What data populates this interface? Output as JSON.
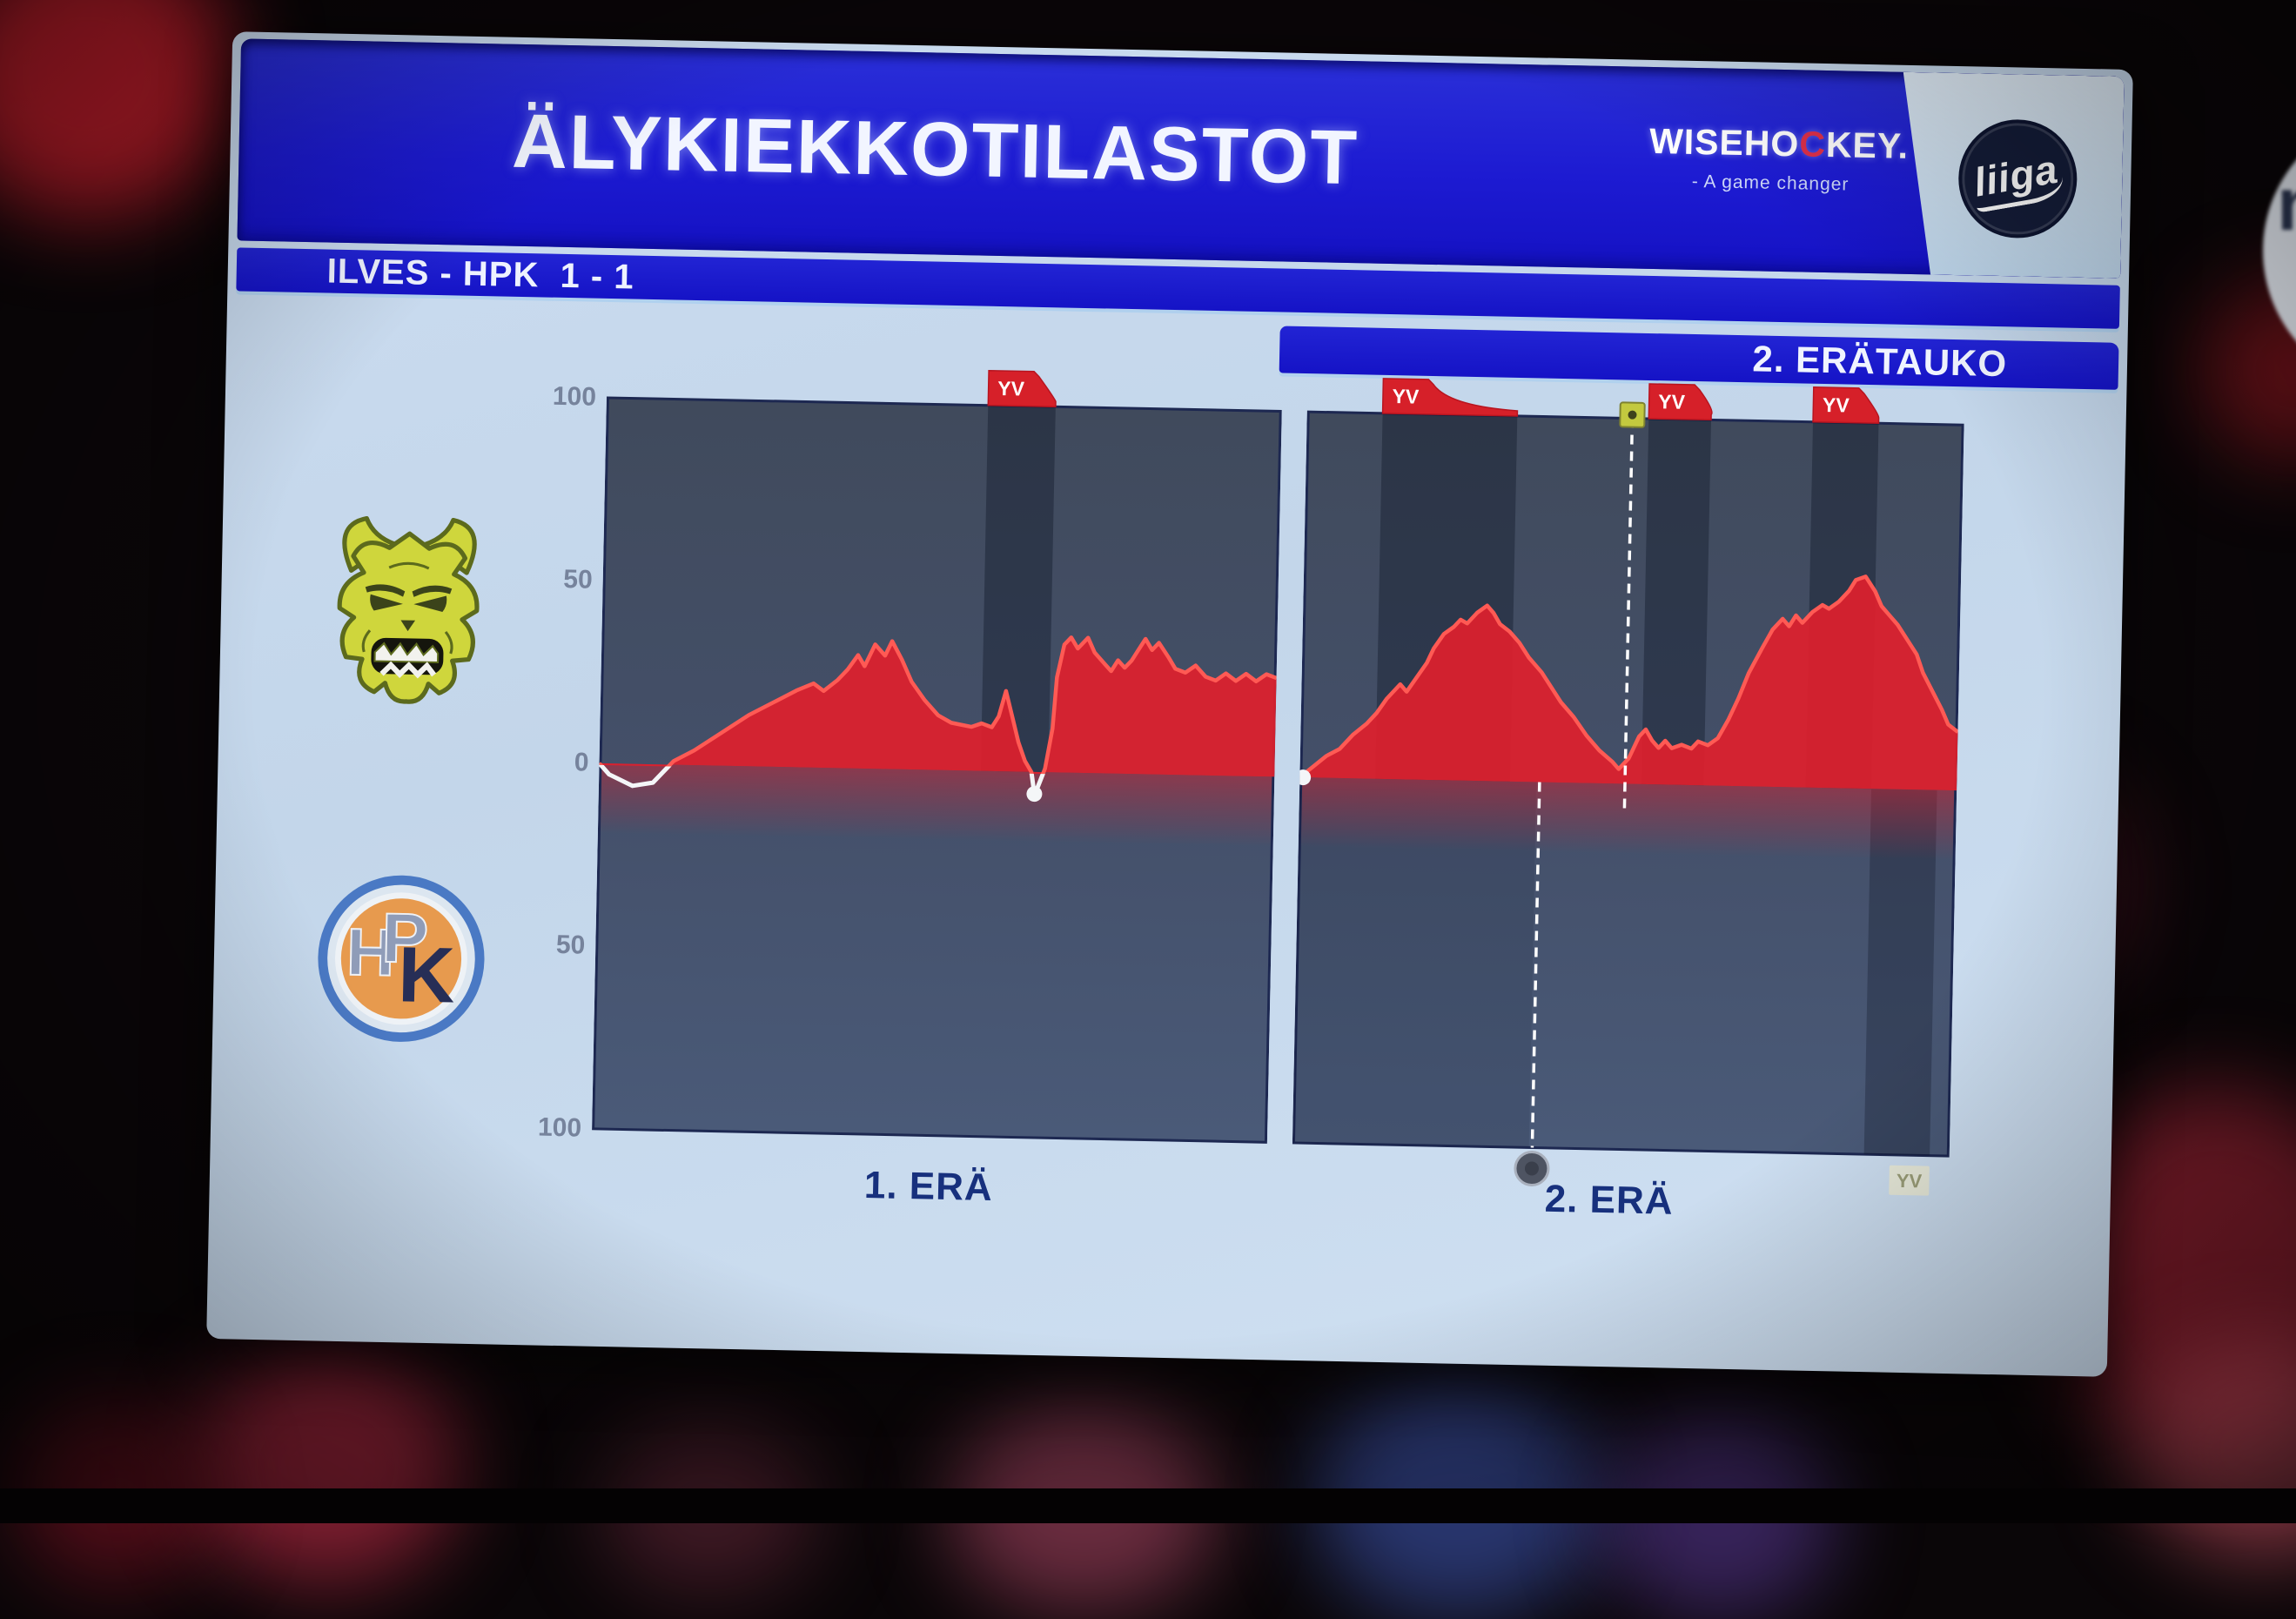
{
  "header": {
    "title": "ÄLYKIEKKOTILASTOT",
    "sponsor": {
      "name": "WISEHOCKEY.",
      "part1": "WISEHO",
      "accent": "C",
      "part2": "KEY.",
      "tagline": "- A game changer"
    },
    "league_text": "liiga"
  },
  "scoreline": {
    "home": "ILVES",
    "away": "HPK",
    "score": "1 - 1",
    "text": "ILVES - HPK  1 - 1"
  },
  "status": {
    "text": "2. ERÄTAUKO"
  },
  "teams": [
    {
      "name": "ILVES",
      "logo": "ilves-lynx"
    },
    {
      "name": "HPK",
      "logo": "hpk-badge"
    }
  ],
  "channel_bug": {
    "letter": "n"
  },
  "colors": {
    "banner_blue": "#1b19cf",
    "panel_bg": "#c9dbee",
    "chart_bg_top": "#404a5c",
    "chart_bg_bottom": "#4a5a78",
    "chart_border": "#1d2851",
    "momentum_fill": "#e01f2d",
    "momentum_line": "#ff5a54",
    "negative_line": "#f4f6f8",
    "powerplay_band": "#0e1426",
    "powerplay_flag": "#d62029",
    "powerplay_flag_text": "#ffffff",
    "hpk_flag": "#e9ead8",
    "hpk_flag_text": "#9a9d78",
    "goal_ilves_marker": "#c3c93f",
    "goal_hpk_marker": "#4e5462",
    "axis_tick_text": "#76839c",
    "period_label_text": "#17307d"
  },
  "chart_data": {
    "type": "area",
    "description": "Game momentum per minute; positive values = ILVES pressure (red area), negative = HPK (white line)",
    "legend_position": "none",
    "grid": false,
    "y_axis_ticks": [
      "100",
      "50",
      "0",
      "50",
      "100"
    ],
    "y_range": [
      -100,
      100
    ],
    "x_minutes_per_period": 20,
    "powerplay_label": "YV",
    "periods": [
      {
        "label": "1. ERÄ",
        "momentum": [
          [
            0,
            0
          ],
          [
            0.3,
            -3
          ],
          [
            1,
            -6
          ],
          [
            1.6,
            -5
          ],
          [
            2,
            -1
          ],
          [
            2.2,
            1
          ],
          [
            2.8,
            4
          ],
          [
            3.6,
            9
          ],
          [
            4.4,
            14
          ],
          [
            5.2,
            18
          ],
          [
            5.8,
            21
          ],
          [
            6.3,
            23
          ],
          [
            6.6,
            21
          ],
          [
            7,
            24
          ],
          [
            7.3,
            27
          ],
          [
            7.6,
            31
          ],
          [
            7.8,
            28
          ],
          [
            8.1,
            34
          ],
          [
            8.4,
            31
          ],
          [
            8.6,
            35
          ],
          [
            8.9,
            30
          ],
          [
            9.2,
            24
          ],
          [
            9.6,
            19
          ],
          [
            10,
            15
          ],
          [
            10.4,
            13
          ],
          [
            11,
            12
          ],
          [
            11.3,
            13
          ],
          [
            11.6,
            12
          ],
          [
            11.8,
            15
          ],
          [
            12,
            22
          ],
          [
            12.2,
            15
          ],
          [
            12.4,
            8
          ],
          [
            12.6,
            3
          ],
          [
            12.8,
            0
          ],
          [
            12.9,
            -6
          ],
          [
            13,
            -4
          ],
          [
            13.2,
            1
          ],
          [
            13.4,
            12
          ],
          [
            13.5,
            26
          ],
          [
            13.7,
            35
          ],
          [
            13.9,
            37
          ],
          [
            14.1,
            34
          ],
          [
            14.4,
            37
          ],
          [
            14.6,
            33
          ],
          [
            14.9,
            30
          ],
          [
            15.1,
            28
          ],
          [
            15.3,
            31
          ],
          [
            15.5,
            29
          ],
          [
            15.7,
            31
          ],
          [
            15.9,
            34
          ],
          [
            16.1,
            37
          ],
          [
            16.3,
            34
          ],
          [
            16.5,
            36
          ],
          [
            16.8,
            32
          ],
          [
            17,
            29
          ],
          [
            17.3,
            28
          ],
          [
            17.6,
            30
          ],
          [
            17.9,
            27
          ],
          [
            18.2,
            26
          ],
          [
            18.5,
            28
          ],
          [
            18.8,
            26
          ],
          [
            19.1,
            28
          ],
          [
            19.4,
            26
          ],
          [
            19.7,
            28
          ],
          [
            20,
            27
          ]
        ],
        "ilves_powerplays": [
          {
            "start": 11.3,
            "end": 13.3
          }
        ],
        "hpk_powerplays": [],
        "goals": [],
        "white_markers": [
          [
            12.9,
            -6
          ]
        ]
      },
      {
        "label": "2. ERÄ",
        "momentum": [
          [
            0,
            0
          ],
          [
            0.4,
            3
          ],
          [
            0.8,
            6
          ],
          [
            1.2,
            8
          ],
          [
            1.6,
            12
          ],
          [
            2,
            15
          ],
          [
            2.3,
            18
          ],
          [
            2.6,
            22
          ],
          [
            3,
            26
          ],
          [
            3.2,
            24
          ],
          [
            3.5,
            28
          ],
          [
            3.8,
            32
          ],
          [
            4,
            36
          ],
          [
            4.3,
            40
          ],
          [
            4.6,
            42
          ],
          [
            4.8,
            44
          ],
          [
            5,
            43
          ],
          [
            5.3,
            46
          ],
          [
            5.6,
            48
          ],
          [
            5.8,
            46
          ],
          [
            6,
            43
          ],
          [
            6.3,
            41
          ],
          [
            6.6,
            38
          ],
          [
            6.9,
            34
          ],
          [
            7.3,
            30
          ],
          [
            7.6,
            26
          ],
          [
            7.9,
            22
          ],
          [
            8.3,
            18
          ],
          [
            8.7,
            13
          ],
          [
            9.1,
            9
          ],
          [
            9.5,
            6
          ],
          [
            9.7,
            4
          ],
          [
            10,
            7
          ],
          [
            10.3,
            13
          ],
          [
            10.5,
            15
          ],
          [
            10.7,
            12
          ],
          [
            10.9,
            10
          ],
          [
            11.1,
            12
          ],
          [
            11.3,
            10
          ],
          [
            11.6,
            11
          ],
          [
            11.9,
            10
          ],
          [
            12.1,
            12
          ],
          [
            12.4,
            11
          ],
          [
            12.7,
            13
          ],
          [
            13,
            18
          ],
          [
            13.3,
            24
          ],
          [
            13.6,
            31
          ],
          [
            14,
            38
          ],
          [
            14.3,
            43
          ],
          [
            14.6,
            46
          ],
          [
            14.8,
            44
          ],
          [
            15,
            47
          ],
          [
            15.2,
            45
          ],
          [
            15.5,
            48
          ],
          [
            15.8,
            50
          ],
          [
            16,
            49
          ],
          [
            16.3,
            51
          ],
          [
            16.6,
            54
          ],
          [
            16.8,
            57
          ],
          [
            17.1,
            58
          ],
          [
            17.4,
            54
          ],
          [
            17.6,
            50
          ],
          [
            17.9,
            47
          ],
          [
            18.1,
            45
          ],
          [
            18.4,
            41
          ],
          [
            18.7,
            37
          ],
          [
            18.9,
            32
          ],
          [
            19.2,
            27
          ],
          [
            19.5,
            22
          ],
          [
            19.7,
            18
          ],
          [
            20,
            16
          ]
        ],
        "ilves_powerplays": [
          {
            "start": 2.3,
            "end": 6.4
          },
          {
            "start": 10.4,
            "end": 12.3
          },
          {
            "start": 15.4,
            "end": 17.4
          }
        ],
        "hpk_powerplays": [
          {
            "start": 0,
            "end": 7.2,
            "dim": 0.1,
            "flag": false
          },
          {
            "start": 17.4,
            "end": 19.4,
            "dim": 0.3,
            "flag": true
          }
        ],
        "goals": [
          {
            "team": "HPK",
            "time": 7.3
          },
          {
            "team": "ILVES",
            "time": 9.9
          }
        ],
        "white_markers": [
          [
            0.1,
            0
          ]
        ]
      }
    ]
  }
}
